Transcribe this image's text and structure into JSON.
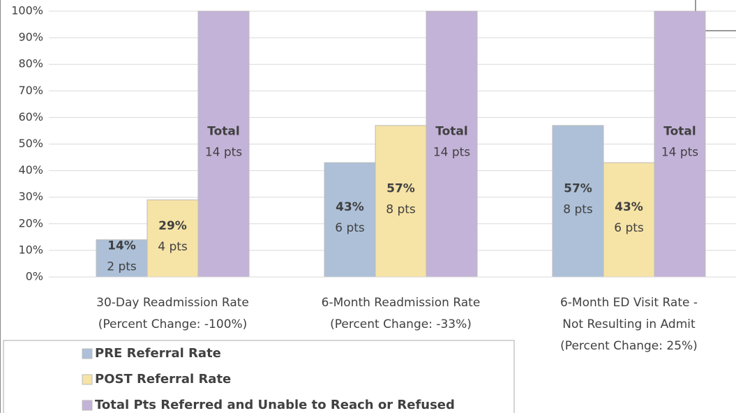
{
  "chart_data": {
    "type": "bar",
    "categories": [
      [
        "30-Day Readmission Rate",
        "(Percent Change: -100%)"
      ],
      [
        "6-Month Readmission Rate",
        "(Percent Change: -33%)"
      ],
      [
        "6-Month ED Visit Rate -",
        "Not Resulting in Admit",
        "(Percent Change: 25%)"
      ]
    ],
    "series": [
      {
        "name": "PRE Referral Rate",
        "color": "#adc0d8",
        "values": [
          14,
          43,
          57
        ],
        "value_labels": [
          "14%",
          "43%",
          "57%"
        ],
        "point_labels": [
          "2 pts",
          "6 pts",
          "8 pts"
        ]
      },
      {
        "name": "POST Referral Rate",
        "color": "#f6e3a6",
        "values": [
          29,
          57,
          43
        ],
        "value_labels": [
          "29%",
          "57%",
          "43%"
        ],
        "point_labels": [
          "4 pts",
          "8 pts",
          "6 pts"
        ]
      },
      {
        "name": "Total Pts Referred and Unable to Reach or Refused",
        "color": "#c3b3d8",
        "values": [
          100,
          100,
          100
        ],
        "value_labels": [
          "Total",
          "Total",
          "Total"
        ],
        "point_labels": [
          "14 pts",
          "14 pts",
          "14 pts"
        ]
      }
    ],
    "ylim": [
      0,
      100
    ],
    "yticks": [
      {
        "value": 0,
        "label": "0%"
      },
      {
        "value": 10,
        "label": "10%"
      },
      {
        "value": 20,
        "label": "20%"
      },
      {
        "value": 30,
        "label": "30%"
      },
      {
        "value": 40,
        "label": "40%"
      },
      {
        "value": 50,
        "label": "50%"
      },
      {
        "value": 60,
        "label": "60%"
      },
      {
        "value": 70,
        "label": "70%"
      },
      {
        "value": 80,
        "label": "80%"
      },
      {
        "value": 90,
        "label": "90%"
      },
      {
        "value": 100,
        "label": "100%"
      }
    ],
    "grid": true,
    "legend": "bottom-left"
  }
}
